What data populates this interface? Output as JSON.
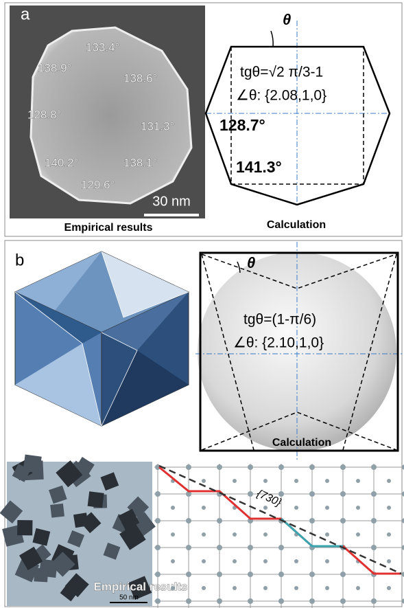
{
  "panel_a": {
    "label": "a",
    "empirical": {
      "angles": [
        "133.4°",
        "138.9°",
        "138.6°",
        "128.8°",
        "131.3°",
        "140.2°",
        "138.1°",
        "129.6°"
      ],
      "scale_bar": "30 nm",
      "caption": "Empirical results"
    },
    "calculation": {
      "theta": "θ",
      "formula": "tgθ=√2 π/3-1",
      "angle": "∠θ: {2.08,1,0}",
      "angle_1": "128.7°",
      "angle_2": "141.3°",
      "caption": "Calculation"
    }
  },
  "panel_b": {
    "label": "b",
    "calculation": {
      "theta": "θ",
      "formula": "tgθ=(1-π/6)",
      "angle": "∠θ: {2.10,1,0}",
      "caption": "Calculation"
    },
    "empirical": {
      "caption": "Empirical results",
      "scale_bar": "50 nm"
    },
    "lattice": {
      "facet": "{730}"
    }
  }
}
